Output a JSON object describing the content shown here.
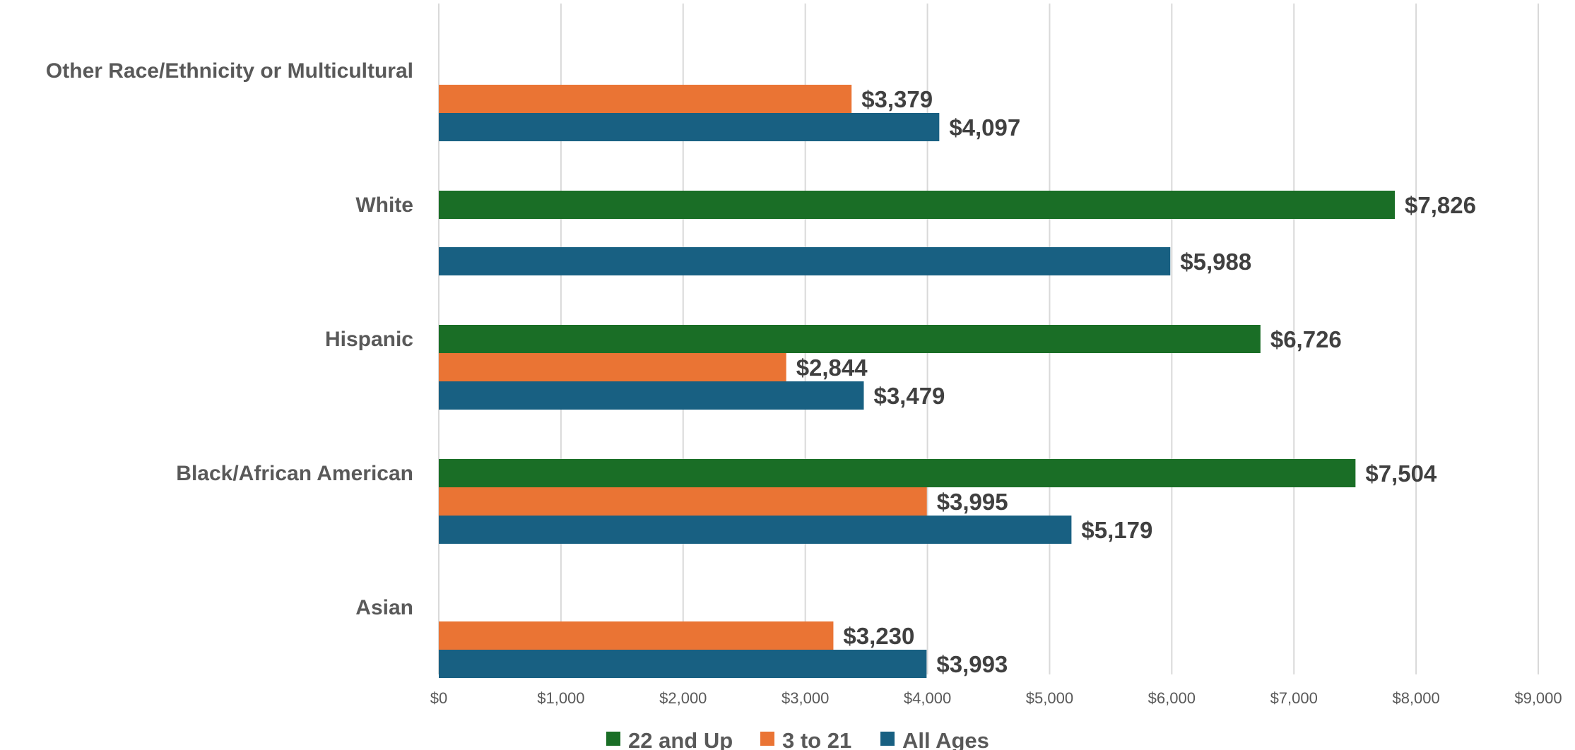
{
  "chart_data": {
    "type": "bar",
    "orientation": "horizontal",
    "categories": [
      "Other Race/Ethnicity or Multicultural",
      "White",
      "Hispanic",
      "Black/African American",
      "Asian"
    ],
    "series": [
      {
        "name": "22 and Up",
        "color": "#1a6e26",
        "values": [
          null,
          7826,
          6726,
          7504,
          null
        ],
        "labels": [
          "",
          "$7,826",
          "$6,726",
          "$7,504",
          ""
        ]
      },
      {
        "name": "3 to 21",
        "color": "#ea7434",
        "values": [
          3379,
          null,
          2844,
          3995,
          3230
        ],
        "labels": [
          "$3,379",
          "",
          "$2,844",
          "$3,995",
          "$3,230"
        ]
      },
      {
        "name": "All Ages",
        "color": "#186082",
        "values": [
          4097,
          5988,
          3479,
          5179,
          3993
        ],
        "labels": [
          "$4,097",
          "$5,988",
          "$3,479",
          "$5,179",
          "$3,993"
        ]
      }
    ],
    "xlim": [
      0,
      9000
    ],
    "xticks": [
      0,
      1000,
      2000,
      3000,
      4000,
      5000,
      6000,
      7000,
      8000,
      9000
    ],
    "xtick_labels": [
      "$0",
      "$1,000",
      "$2,000",
      "$3,000",
      "$4,000",
      "$5,000",
      "$6,000",
      "$7,000",
      "$8,000",
      "$9,000"
    ],
    "title": "",
    "xlabel": "",
    "ylabel": "",
    "grid": "vertical",
    "legend_position": "bottom"
  }
}
